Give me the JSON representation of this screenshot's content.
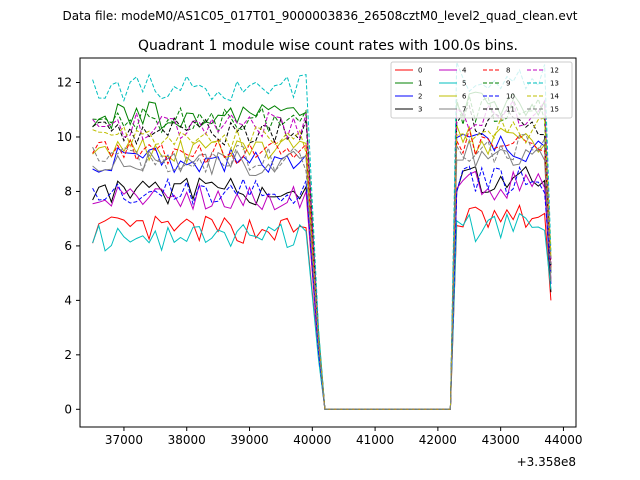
{
  "chart_data": {
    "type": "line",
    "suptitle": "Data file: modeM0/AS1C05_017T01_9000003836_26508cztM0_level2_quad_clean.evt",
    "title": "Quadrant 1 module wise count rates with 100.0s bins.",
    "xlabel": "",
    "ylabel": "",
    "x_offset_label": "+3.358e8",
    "xlim": [
      36300,
      44200
    ],
    "ylim": [
      -0.65,
      12.9
    ],
    "x_ticks": [
      37000,
      38000,
      39000,
      40000,
      41000,
      42000,
      43000,
      44000
    ],
    "x_tick_labels": [
      "37000",
      "38000",
      "39000",
      "40000",
      "41000",
      "42000",
      "43000",
      "44000"
    ],
    "y_ticks": [
      0,
      2,
      4,
      6,
      8,
      10,
      12
    ],
    "y_tick_labels": [
      "0",
      "2",
      "4",
      "6",
      "8",
      "10",
      "12"
    ],
    "x_segments": [
      {
        "start": 36500,
        "step": 100,
        "count": 35
      },
      {
        "start": 40100,
        "step": 100,
        "count": 1
      },
      {
        "start": 40200,
        "step": 100,
        "count": 21
      },
      {
        "start": 42300,
        "step": 100,
        "count": 16
      }
    ],
    "gap_value": 0,
    "legend_location": "upper right",
    "series": [
      {
        "name": "0",
        "color": "#ff0000",
        "style": "solid",
        "mean": 6.6,
        "dip": 1.9,
        "end": 4.0
      },
      {
        "name": "1",
        "color": "#008000",
        "style": "solid",
        "mean": 10.8,
        "dip": 2.8,
        "end": 5.0
      },
      {
        "name": "2",
        "color": "#0000ff",
        "style": "solid",
        "mean": 9.2,
        "dip": 2.3,
        "end": 4.6
      },
      {
        "name": "3",
        "color": "#000000",
        "style": "solid",
        "mean": 8.0,
        "dip": 2.1,
        "end": 4.3
      },
      {
        "name": "4",
        "color": "#bf00bf",
        "style": "solid",
        "mean": 7.8,
        "dip": 2.0,
        "end": 4.8
      },
      {
        "name": "5",
        "color": "#00bfbf",
        "style": "solid",
        "mean": 6.3,
        "dip": 1.8,
        "end": 4.4
      },
      {
        "name": "6",
        "color": "#bfbf00",
        "style": "solid",
        "mean": 9.5,
        "dip": 2.4,
        "end": 5.1
      },
      {
        "name": "7",
        "color": "#808080",
        "style": "solid",
        "mean": 9.0,
        "dip": 2.3,
        "end": 4.7
      },
      {
        "name": "8",
        "color": "#ff0000",
        "style": "dashed",
        "mean": 9.4,
        "dip": 2.4,
        "end": 5.2
      },
      {
        "name": "9",
        "color": "#008000",
        "style": "dashed",
        "mean": 10.6,
        "dip": 2.7,
        "end": 5.5
      },
      {
        "name": "10",
        "color": "#0000ff",
        "style": "dashed",
        "mean": 8.0,
        "dip": 2.1,
        "end": 5.0
      },
      {
        "name": "11",
        "color": "#000000",
        "style": "dashed",
        "mean": 10.2,
        "dip": 2.6,
        "end": 5.3
      },
      {
        "name": "12",
        "color": "#bf00bf",
        "style": "dashed",
        "mean": 10.4,
        "dip": 2.6,
        "end": 5.4
      },
      {
        "name": "13",
        "color": "#00bfbf",
        "style": "dashed",
        "mean": 11.8,
        "dip": 2.9,
        "end": 5.8
      },
      {
        "name": "14",
        "color": "#bfbf00",
        "style": "dashed",
        "mean": 9.9,
        "dip": 2.5,
        "end": 5.6
      },
      {
        "name": "15",
        "color": "#808080",
        "style": "dashed",
        "mean": 9.2,
        "dip": 2.4,
        "end": 5.0
      }
    ]
  }
}
